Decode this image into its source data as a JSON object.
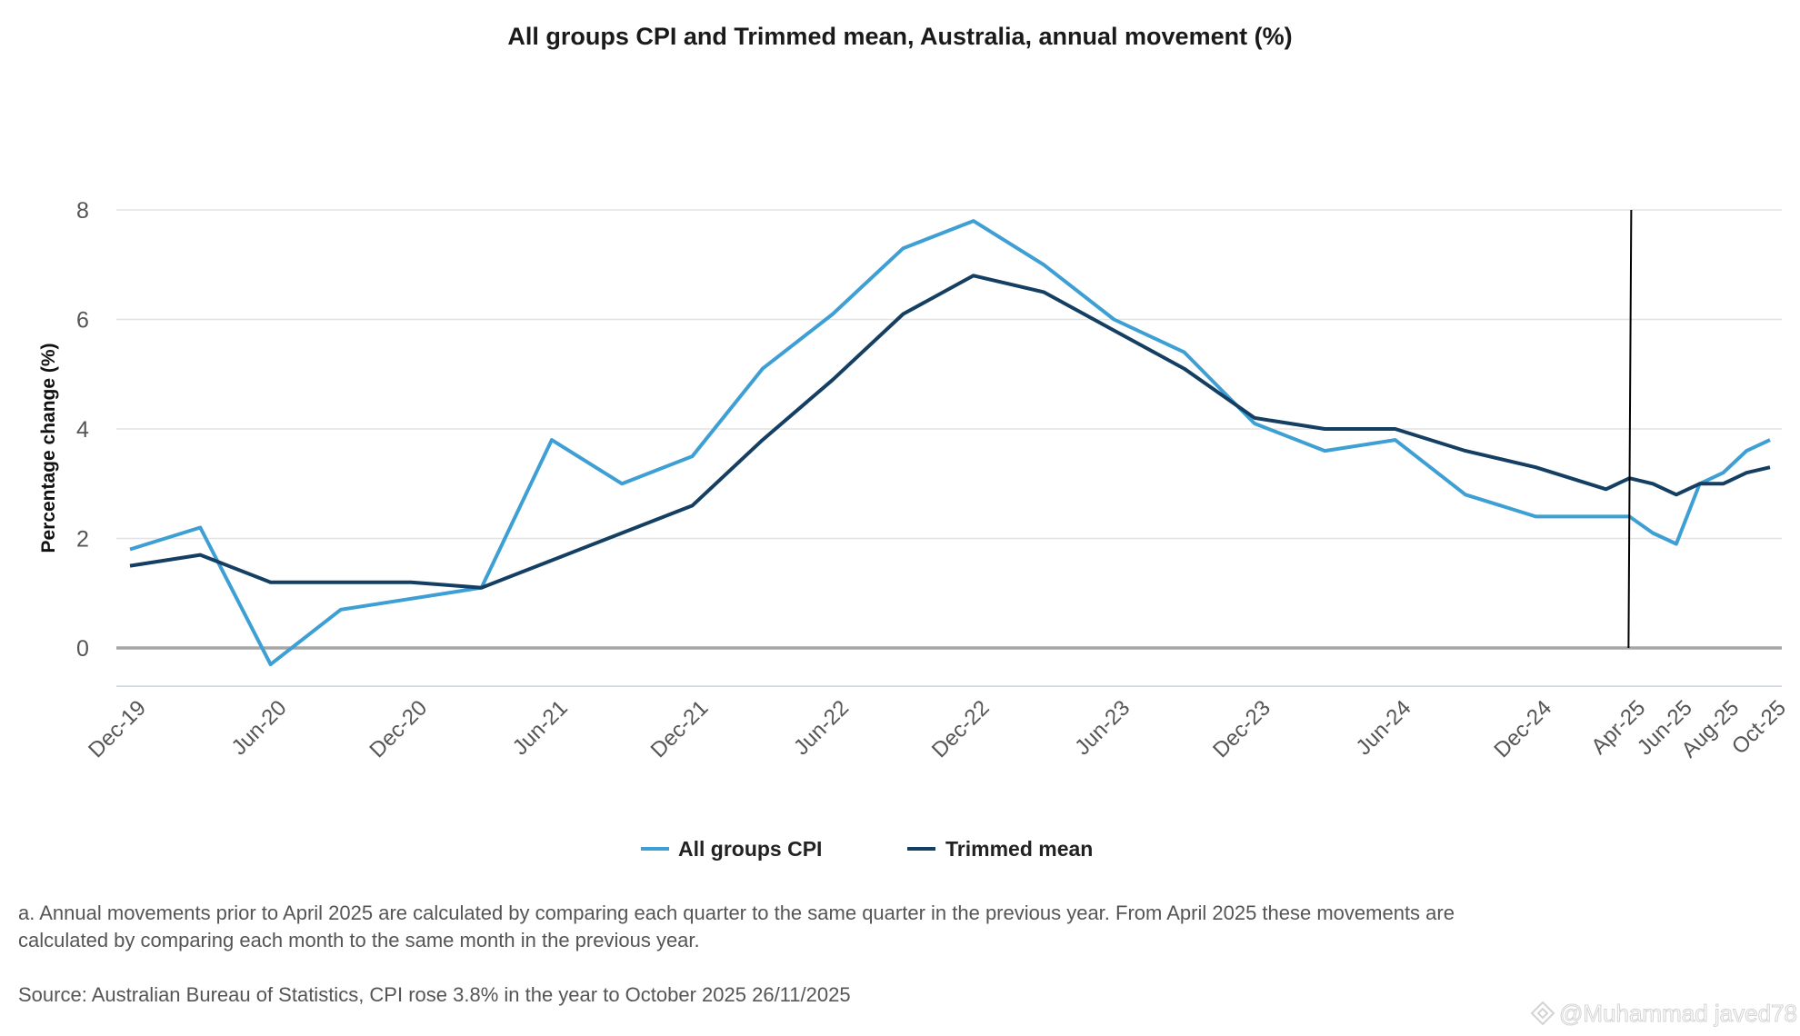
{
  "chart_data": {
    "type": "line",
    "title": "All groups CPI and Trimmed mean, Australia, annual movement (%)",
    "xlabel": "",
    "ylabel": "Percentage change (%)",
    "ylim": [
      -0.7,
      8
    ],
    "yticks": [
      0,
      2,
      4,
      6,
      8
    ],
    "grid": true,
    "legend_position": "bottom",
    "x": [
      "Dec-19",
      "Mar-20",
      "Jun-20",
      "Sep-20",
      "Dec-20",
      "Mar-21",
      "Jun-21",
      "Sep-21",
      "Dec-21",
      "Mar-22",
      "Jun-22",
      "Sep-22",
      "Dec-22",
      "Mar-23",
      "Jun-23",
      "Sep-23",
      "Dec-23",
      "Mar-24",
      "Jun-24",
      "Sep-24",
      "Dec-24",
      "Mar-25",
      "Apr-25",
      "May-25",
      "Jun-25",
      "Jul-25",
      "Aug-25",
      "Sep-25",
      "Oct-25"
    ],
    "x_tick_labels": [
      "Dec-19",
      "Jun-20",
      "Dec-20",
      "Jun-21",
      "Dec-21",
      "Jun-22",
      "Dec-22",
      "Jun-23",
      "Dec-23",
      "Jun-24",
      "Dec-24",
      "Apr-25",
      "Jun-25",
      "Aug-25",
      "Oct-25"
    ],
    "series": [
      {
        "name": "All groups CPI",
        "color": "#3d9fd3",
        "values": [
          1.8,
          2.2,
          -0.3,
          0.7,
          0.9,
          1.1,
          3.8,
          3.0,
          3.5,
          5.1,
          6.1,
          7.3,
          7.8,
          7.0,
          6.0,
          5.4,
          4.1,
          3.6,
          3.8,
          2.8,
          2.4,
          2.4,
          2.4,
          2.1,
          1.9,
          3.0,
          3.2,
          3.6,
          3.8
        ]
      },
      {
        "name": "Trimmed mean",
        "color": "#143f63",
        "values": [
          1.5,
          1.7,
          1.2,
          1.2,
          1.2,
          1.1,
          1.6,
          2.1,
          2.6,
          3.8,
          4.9,
          6.1,
          6.8,
          6.5,
          5.8,
          5.1,
          4.2,
          4.0,
          4.0,
          3.6,
          3.3,
          2.9,
          3.1,
          3.0,
          2.8,
          3.0,
          3.0,
          3.2,
          3.3
        ]
      }
    ],
    "vertical_marker_at": "Apr-25"
  },
  "footnote_line1": "a. Annual movements prior to April 2025 are calculated by comparing each quarter to the same quarter in the previous year.  From April 2025 these movements are",
  "footnote_line2": "calculated by comparing each month to the same month in the previous year.",
  "source": "Source: Australian Bureau of Statistics, CPI rose 3.8% in the year to October 2025 26/11/2025",
  "watermark": "@Muhammad javed78"
}
